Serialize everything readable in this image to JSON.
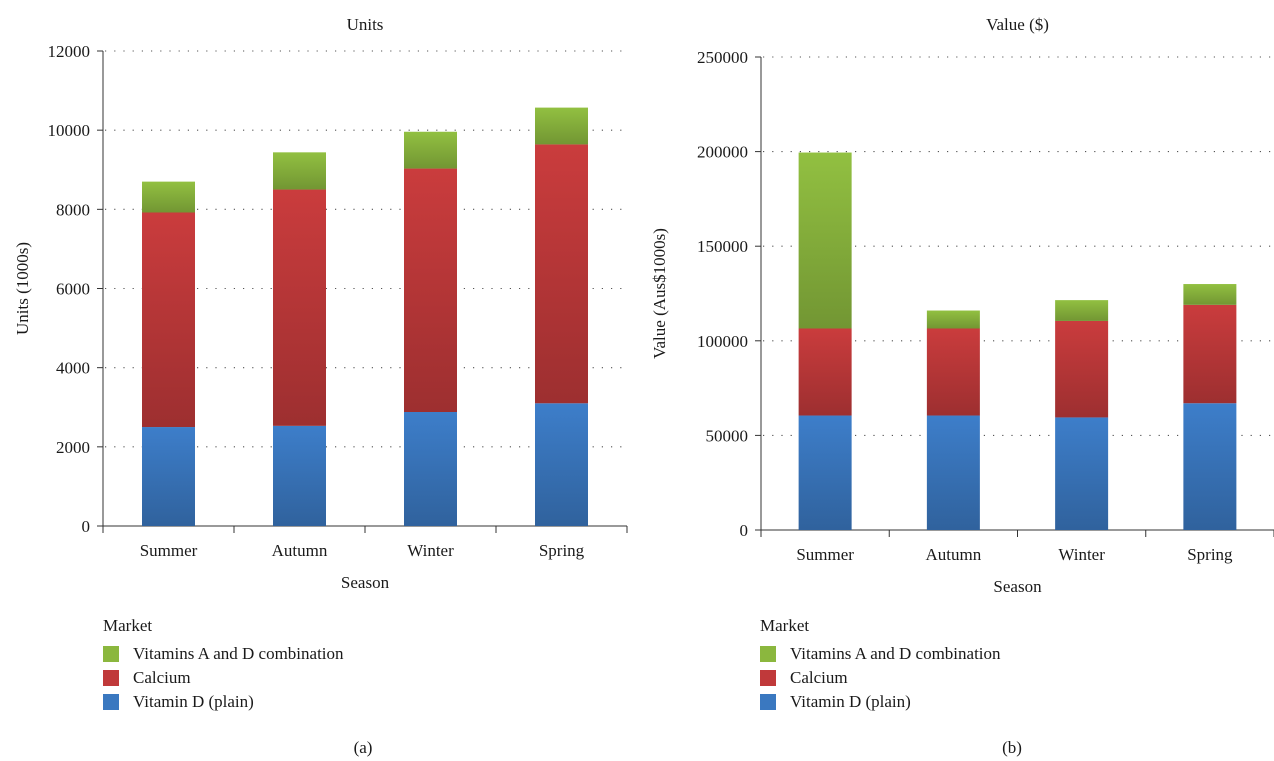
{
  "legend": {
    "title": "Market",
    "items": [
      {
        "label": "Vitamins A and D combination",
        "color": "#8bb73e"
      },
      {
        "label": "Calcium",
        "color": "#c0393a"
      },
      {
        "label": "Vitamin D (plain)",
        "color": "#3a78c0"
      }
    ]
  },
  "chart_data": [
    {
      "type": "bar",
      "stacked": true,
      "panel_label": "(a)",
      "title": "Units",
      "xlabel": "Season",
      "ylabel": "Units (1000s)",
      "ylim": [
        0,
        12000
      ],
      "yticks": [
        0,
        2000,
        4000,
        6000,
        8000,
        10000,
        12000
      ],
      "grid": "dotted-horizontal",
      "categories": [
        "Summer",
        "Autumn",
        "Winter",
        "Spring"
      ],
      "series": [
        {
          "name": "Vitamin D (plain)",
          "color": "#3a78c0",
          "values": [
            2500,
            2530,
            2880,
            3100
          ]
        },
        {
          "name": "Calcium",
          "color": "#c0393a",
          "values": [
            5420,
            5970,
            6150,
            6540
          ]
        },
        {
          "name": "Vitamins A and D combination",
          "color": "#8bb73e",
          "values": [
            780,
            940,
            930,
            930
          ]
        }
      ]
    },
    {
      "type": "bar",
      "stacked": true,
      "panel_label": "(b)",
      "title": "Value ($)",
      "xlabel": "Season",
      "ylabel": "Value (Aus$1000s)",
      "ylim": [
        0,
        250000
      ],
      "yticks": [
        0,
        50000,
        100000,
        150000,
        200000,
        250000
      ],
      "grid": "dotted-horizontal",
      "categories": [
        "Summer",
        "Autumn",
        "Winter",
        "Spring"
      ],
      "series": [
        {
          "name": "Vitamin D (plain)",
          "color": "#3a78c0",
          "values": [
            60500,
            60500,
            59500,
            67000
          ]
        },
        {
          "name": "Calcium",
          "color": "#c0393a",
          "values": [
            46000,
            46000,
            51000,
            52000
          ]
        },
        {
          "name": "Vitamins A and D combination",
          "color": "#8bb73e",
          "values": [
            93000,
            9500,
            11000,
            11000
          ]
        }
      ]
    }
  ]
}
